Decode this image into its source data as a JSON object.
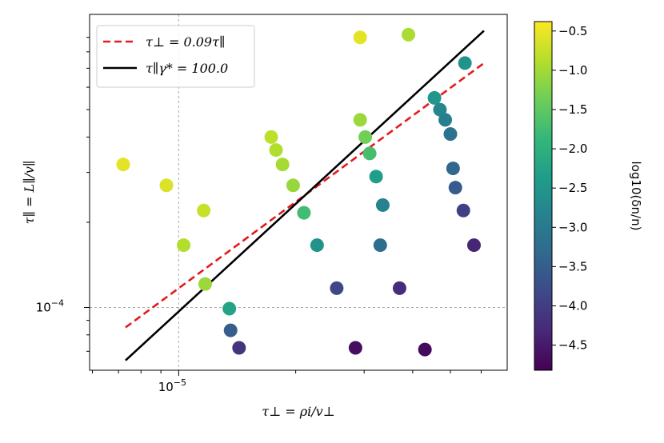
{
  "chart_data": {
    "type": "scatter",
    "xscale": "log",
    "yscale": "log",
    "xlim": [
      5.9e-06,
      7e-05
    ],
    "ylim": [
      6e-05,
      0.001085
    ],
    "xlabel": "τ⊥ = ρi/v⊥",
    "ylabel": "τ∥ = L∥/v∥",
    "x_major_ticks": [
      {
        "value": 1e-05,
        "label": "10^-5"
      }
    ],
    "y_major_ticks": [
      {
        "value": 0.0001,
        "label": "10^-4"
      }
    ],
    "x_minor_ticks": [
      6e-06,
      7e-06,
      8e-06,
      9e-06,
      2e-05,
      3e-05,
      4e-05,
      5e-05,
      6e-05
    ],
    "y_minor_ticks": [
      7e-05,
      8e-05,
      9e-05,
      0.0002,
      0.0003,
      0.0004,
      0.0005,
      0.0006,
      0.0007,
      0.0008,
      0.0009
    ],
    "reference_lines": {
      "x": 1e-05,
      "y": 0.0001,
      "style": "dotted gray"
    },
    "legend": {
      "position": "top-left",
      "entries": [
        {
          "label": "τ⊥ = 0.09τ∥",
          "color": "#e41a1c",
          "style": "dashed"
        },
        {
          "label": "τ∥γ* = 100.0",
          "color": "#000000",
          "style": "solid"
        }
      ]
    },
    "lines": [
      {
        "name": "τ⊥ = 0.09τ∥",
        "color": "#e41a1c",
        "dash": true,
        "x": [
          7.3e-06,
          6.1e-05
        ],
        "y": [
          8.5e-05,
          0.00073
        ]
      },
      {
        "name": "τ∥γ* = 100.0",
        "color": "#000000",
        "dash": false,
        "x": [
          7.3e-06,
          6.1e-05
        ],
        "y": [
          6.5e-05,
          0.00095
        ]
      }
    ],
    "colorbar": {
      "label": "log10(δn/n)",
      "range": [
        -4.82,
        -0.38
      ],
      "colormap": "viridis",
      "ticks": [
        -0.5,
        -1.0,
        -1.5,
        -2.0,
        -2.5,
        -3.0,
        -3.5,
        -4.0,
        -4.5
      ],
      "tick_labels": [
        "−0.5",
        "−1.0",
        "−1.5",
        "−2.0",
        "−2.5",
        "−3.0",
        "−3.5",
        "−4.0",
        "−4.5"
      ]
    },
    "series": [
      {
        "name": "points",
        "points": [
          {
            "x": 7.2e-06,
            "y": 0.00032,
            "c": -0.55
          },
          {
            "x": 9.3e-06,
            "y": 0.00027,
            "c": -0.62
          },
          {
            "x": 1.03e-05,
            "y": 0.000166,
            "c": -0.88
          },
          {
            "x": 1.16e-05,
            "y": 0.00022,
            "c": -0.75
          },
          {
            "x": 1.17e-05,
            "y": 0.000121,
            "c": -1.05
          },
          {
            "x": 1.35e-05,
            "y": 9.9e-05,
            "c": -2.25
          },
          {
            "x": 1.36e-05,
            "y": 8.3e-05,
            "c": -3.5
          },
          {
            "x": 1.43e-05,
            "y": 7.2e-05,
            "c": -4.15
          },
          {
            "x": 1.73e-05,
            "y": 0.0004,
            "c": -0.82
          },
          {
            "x": 1.78e-05,
            "y": 0.00036,
            "c": -0.9
          },
          {
            "x": 1.85e-05,
            "y": 0.00032,
            "c": -0.98
          },
          {
            "x": 1.97e-05,
            "y": 0.00027,
            "c": -1.08
          },
          {
            "x": 2.1e-05,
            "y": 0.000216,
            "c": -1.75
          },
          {
            "x": 2.27e-05,
            "y": 0.000166,
            "c": -2.55
          },
          {
            "x": 2.55e-05,
            "y": 0.000117,
            "c": -3.85
          },
          {
            "x": 2.93e-05,
            "y": 0.0009,
            "c": -0.55
          },
          {
            "x": 2.93e-05,
            "y": 0.00046,
            "c": -1.05
          },
          {
            "x": 3.02e-05,
            "y": 0.0004,
            "c": -1.35
          },
          {
            "x": 3.1e-05,
            "y": 0.00035,
            "c": -1.7
          },
          {
            "x": 3.22e-05,
            "y": 0.00029,
            "c": -2.35
          },
          {
            "x": 3.35e-05,
            "y": 0.00023,
            "c": -2.85
          },
          {
            "x": 3.3e-05,
            "y": 0.000166,
            "c": -3.25
          },
          {
            "x": 2.85e-05,
            "y": 7.2e-05,
            "c": -4.65
          },
          {
            "x": 3.7e-05,
            "y": 0.000117,
            "c": -4.25
          },
          {
            "x": 3.9e-05,
            "y": 0.00092,
            "c": -0.95
          },
          {
            "x": 4.3e-05,
            "y": 7.1e-05,
            "c": -4.7
          },
          {
            "x": 4.55e-05,
            "y": 0.00055,
            "c": -2.5
          },
          {
            "x": 4.7e-05,
            "y": 0.0005,
            "c": -2.75
          },
          {
            "x": 4.85e-05,
            "y": 0.00046,
            "c": -2.95
          },
          {
            "x": 5e-05,
            "y": 0.00041,
            "c": -3.15
          },
          {
            "x": 5.08e-05,
            "y": 0.00031,
            "c": -3.35
          },
          {
            "x": 5.15e-05,
            "y": 0.000265,
            "c": -3.55
          },
          {
            "x": 5.4e-05,
            "y": 0.00022,
            "c": -3.95
          },
          {
            "x": 5.75e-05,
            "y": 0.000166,
            "c": -4.35
          },
          {
            "x": 5.45e-05,
            "y": 0.00073,
            "c": -2.55
          }
        ]
      }
    ]
  }
}
